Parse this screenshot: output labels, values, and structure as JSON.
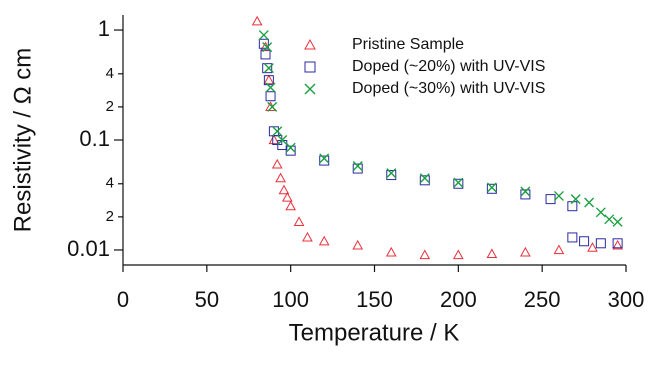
{
  "chart_data": {
    "type": "scatter",
    "x_label": "Temperature / K",
    "y_label": "Resistivity / Ω cm",
    "xlim": [
      0,
      300
    ],
    "xticks": [
      0,
      50,
      100,
      150,
      200,
      250,
      300
    ],
    "ylim": [
      0.0073,
      1.37
    ],
    "log_y": true,
    "yticks": [
      1,
      {
        "value": 0.4,
        "label": "4"
      },
      {
        "value": 0.2,
        "label": "2"
      },
      0.1,
      {
        "value": 0.04,
        "label": "4"
      },
      {
        "value": 0.02,
        "label": "2"
      },
      0.01
    ],
    "legend": "top-right",
    "series": [
      {
        "name": "Pristine Sample",
        "color": "#e8303a",
        "marker": "triangle",
        "x": [
          80,
          85,
          87,
          88,
          90,
          92,
          94,
          96,
          98,
          100,
          105,
          110,
          120,
          140,
          160,
          180,
          200,
          220,
          240,
          260,
          280,
          295
        ],
        "values": [
          1.2,
          0.7,
          0.35,
          0.2,
          0.1,
          0.06,
          0.045,
          0.035,
          0.03,
          0.025,
          0.018,
          0.013,
          0.012,
          0.011,
          0.0095,
          0.009,
          0.009,
          0.0092,
          0.0095,
          0.01,
          0.0105,
          0.011
        ]
      },
      {
        "name": "Doped (~20%) with UV-VIS",
        "color": "#2a2aa0",
        "marker": "square",
        "x": [
          84,
          85,
          86,
          87,
          88,
          90,
          92,
          95,
          100,
          120,
          140,
          160,
          180,
          200,
          220,
          240,
          255,
          268,
          268,
          275,
          285,
          295
        ],
        "values": [
          0.75,
          0.6,
          0.45,
          0.35,
          0.25,
          0.12,
          0.1,
          0.09,
          0.08,
          0.065,
          0.055,
          0.048,
          0.043,
          0.04,
          0.036,
          0.032,
          0.029,
          0.025,
          0.013,
          0.012,
          0.0115,
          0.0115
        ]
      },
      {
        "name": "Doped (~30%) with UV-VIS",
        "color": "#1aa040",
        "marker": "cross",
        "x": [
          84,
          86,
          87,
          88,
          89,
          92,
          95,
          100,
          120,
          140,
          160,
          180,
          200,
          220,
          240,
          260,
          270,
          278,
          285,
          290,
          295
        ],
        "values": [
          0.9,
          0.7,
          0.45,
          0.3,
          0.2,
          0.12,
          0.1,
          0.085,
          0.068,
          0.058,
          0.05,
          0.045,
          0.041,
          0.037,
          0.034,
          0.031,
          0.029,
          0.027,
          0.022,
          0.019,
          0.018
        ]
      }
    ]
  }
}
